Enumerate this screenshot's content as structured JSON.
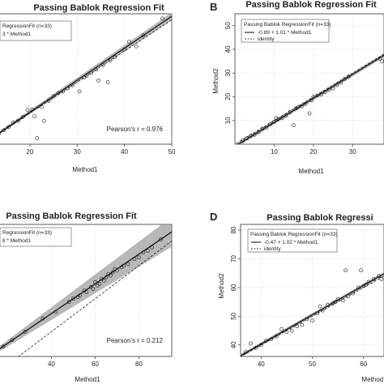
{
  "chart_data": [
    {
      "type": "scatter",
      "panel_label": "",
      "title": "Passing Bablok Regression Fit",
      "xlabel": "Method1",
      "ylabel": "",
      "xlim": [
        13,
        50
      ],
      "ylim": [
        10,
        52
      ],
      "xticks": [
        20,
        30,
        40,
        50
      ],
      "yticks": [],
      "legend_title": "RegressionFit (n=33)",
      "legend_items": [
        "3 * Method1"
      ],
      "legend_position": "top-left",
      "annotation": "Pearson's r = 0.976",
      "fit": {
        "intercept": -0.3,
        "slope": 1.03
      },
      "band": [
        0.5,
        1.2
      ],
      "x": [
        13.5,
        14.5,
        15.5,
        16.5,
        17.5,
        18.5,
        19.5,
        20.5,
        21,
        21.5,
        22.5,
        23,
        24,
        25,
        26,
        27,
        28,
        29,
        30.5,
        31.5,
        32,
        33,
        34,
        34.5,
        35.5,
        36.5,
        37,
        38,
        40,
        41,
        42.5,
        44,
        48
      ],
      "y": [
        13.5,
        14.5,
        15.5,
        17,
        17.5,
        18.8,
        21,
        21.2,
        19,
        12,
        22,
        17.5,
        24,
        25.5,
        26.5,
        27,
        28,
        29,
        27,
        31.5,
        32,
        33,
        34,
        30.5,
        35.5,
        30,
        37,
        38,
        40.5,
        43,
        41.5,
        45,
        50.5
      ]
    },
    {
      "type": "scatter",
      "panel_label": "B",
      "title": "Passing Bablok Regression Fit",
      "xlabel": "Method1",
      "ylabel": "Method2",
      "xlim": [
        0,
        38
      ],
      "ylim": [
        0,
        55
      ],
      "xticks": [
        10,
        20,
        30
      ],
      "yticks": [
        10,
        20,
        30,
        40,
        50
      ],
      "legend_title": "Passing Bablok RegressionFit (n=33)",
      "legend_items": [
        "-0.89 + 1.01 * Method1",
        "identity"
      ],
      "legend_position": "top-left",
      "annotation": "",
      "fit": {
        "intercept": -0.89,
        "slope": 1.01
      },
      "band": [
        0.8,
        0.8
      ],
      "x": [
        2,
        3,
        4,
        5,
        6,
        7,
        8,
        9,
        10,
        10.5,
        11,
        12,
        13,
        14,
        15,
        15.5,
        16,
        17,
        18,
        19,
        19.5,
        20,
        21,
        22,
        23,
        24,
        25,
        26,
        27,
        28,
        29,
        37,
        37.5
      ],
      "y": [
        1.5,
        2.5,
        3.5,
        4,
        5,
        6.5,
        7,
        8.5,
        9.5,
        11,
        10.5,
        11,
        12,
        13.5,
        8,
        15,
        15.5,
        16,
        17,
        13,
        18.5,
        20,
        20.5,
        21,
        22,
        23,
        23.5,
        25,
        26,
        27.5,
        28.5,
        36,
        35
      ]
    },
    {
      "type": "scatter",
      "panel_label": "",
      "title": "Passing Bablok Regression Fit",
      "xlabel": "Method1",
      "ylabel": "",
      "xlim": [
        15,
        95
      ],
      "ylim": [
        25,
        105
      ],
      "xticks": [
        40,
        60,
        80
      ],
      "yticks": [],
      "legend_title": "RegressionFit (n=33)",
      "legend_items": [
        "8 * Method1"
      ],
      "legend_position": "top-left",
      "annotation": "Pearson's r = 0.212",
      "fit": {
        "intercept": 15,
        "slope": 0.9
      },
      "band": [
        1.5,
        9
      ],
      "x": [
        18,
        22,
        28,
        36,
        42,
        48,
        50,
        52,
        53,
        55,
        56,
        58,
        59,
        60,
        61,
        62,
        63,
        64,
        65,
        66,
        67,
        68,
        69,
        70,
        72,
        73,
        75,
        78,
        80,
        82,
        84,
        86,
        90
      ],
      "y": [
        31,
        35,
        40,
        48,
        52,
        58,
        60,
        61,
        62,
        65,
        64,
        67,
        66,
        70,
        68,
        69,
        72,
        71,
        73,
        75,
        74,
        76,
        78,
        77,
        79,
        80,
        81,
        84,
        85,
        88,
        89,
        91,
        96
      ]
    },
    {
      "type": "scatter",
      "panel_label": "D",
      "title": "Passing Bablok Regressi",
      "xlabel": "Method1",
      "ylabel": "Method2",
      "xlim": [
        36,
        64
      ],
      "ylim": [
        36,
        82
      ],
      "xticks": [
        40,
        50,
        60
      ],
      "yticks": [
        40,
        50,
        60,
        70,
        80
      ],
      "legend_title": "Passing Bablok RegressionFit (n=33)",
      "legend_items": [
        "-0.47 + 1.02 * Method1",
        "identity"
      ],
      "legend_position": "top-left",
      "annotation": "",
      "fit": {
        "intercept": -0.47,
        "slope": 1.02
      },
      "band": [
        0.6,
        0.6
      ],
      "x": [
        37,
        38,
        39,
        40,
        41,
        42,
        43,
        44,
        45,
        46,
        47,
        48,
        49,
        50,
        51,
        51.5,
        52,
        53,
        54,
        54.5,
        55,
        56,
        56.5,
        57,
        58,
        59,
        59.5,
        60,
        60.5,
        61,
        62,
        63,
        63.5
      ],
      "y": [
        37.5,
        40.5,
        39,
        40,
        41.5,
        42,
        43,
        45.5,
        44.5,
        45,
        46.5,
        47,
        49,
        48.5,
        51,
        53.5,
        52,
        54,
        54.5,
        55,
        56,
        55.5,
        66,
        57,
        58,
        60,
        66,
        60.5,
        61,
        62,
        63,
        64,
        63
      ]
    }
  ]
}
